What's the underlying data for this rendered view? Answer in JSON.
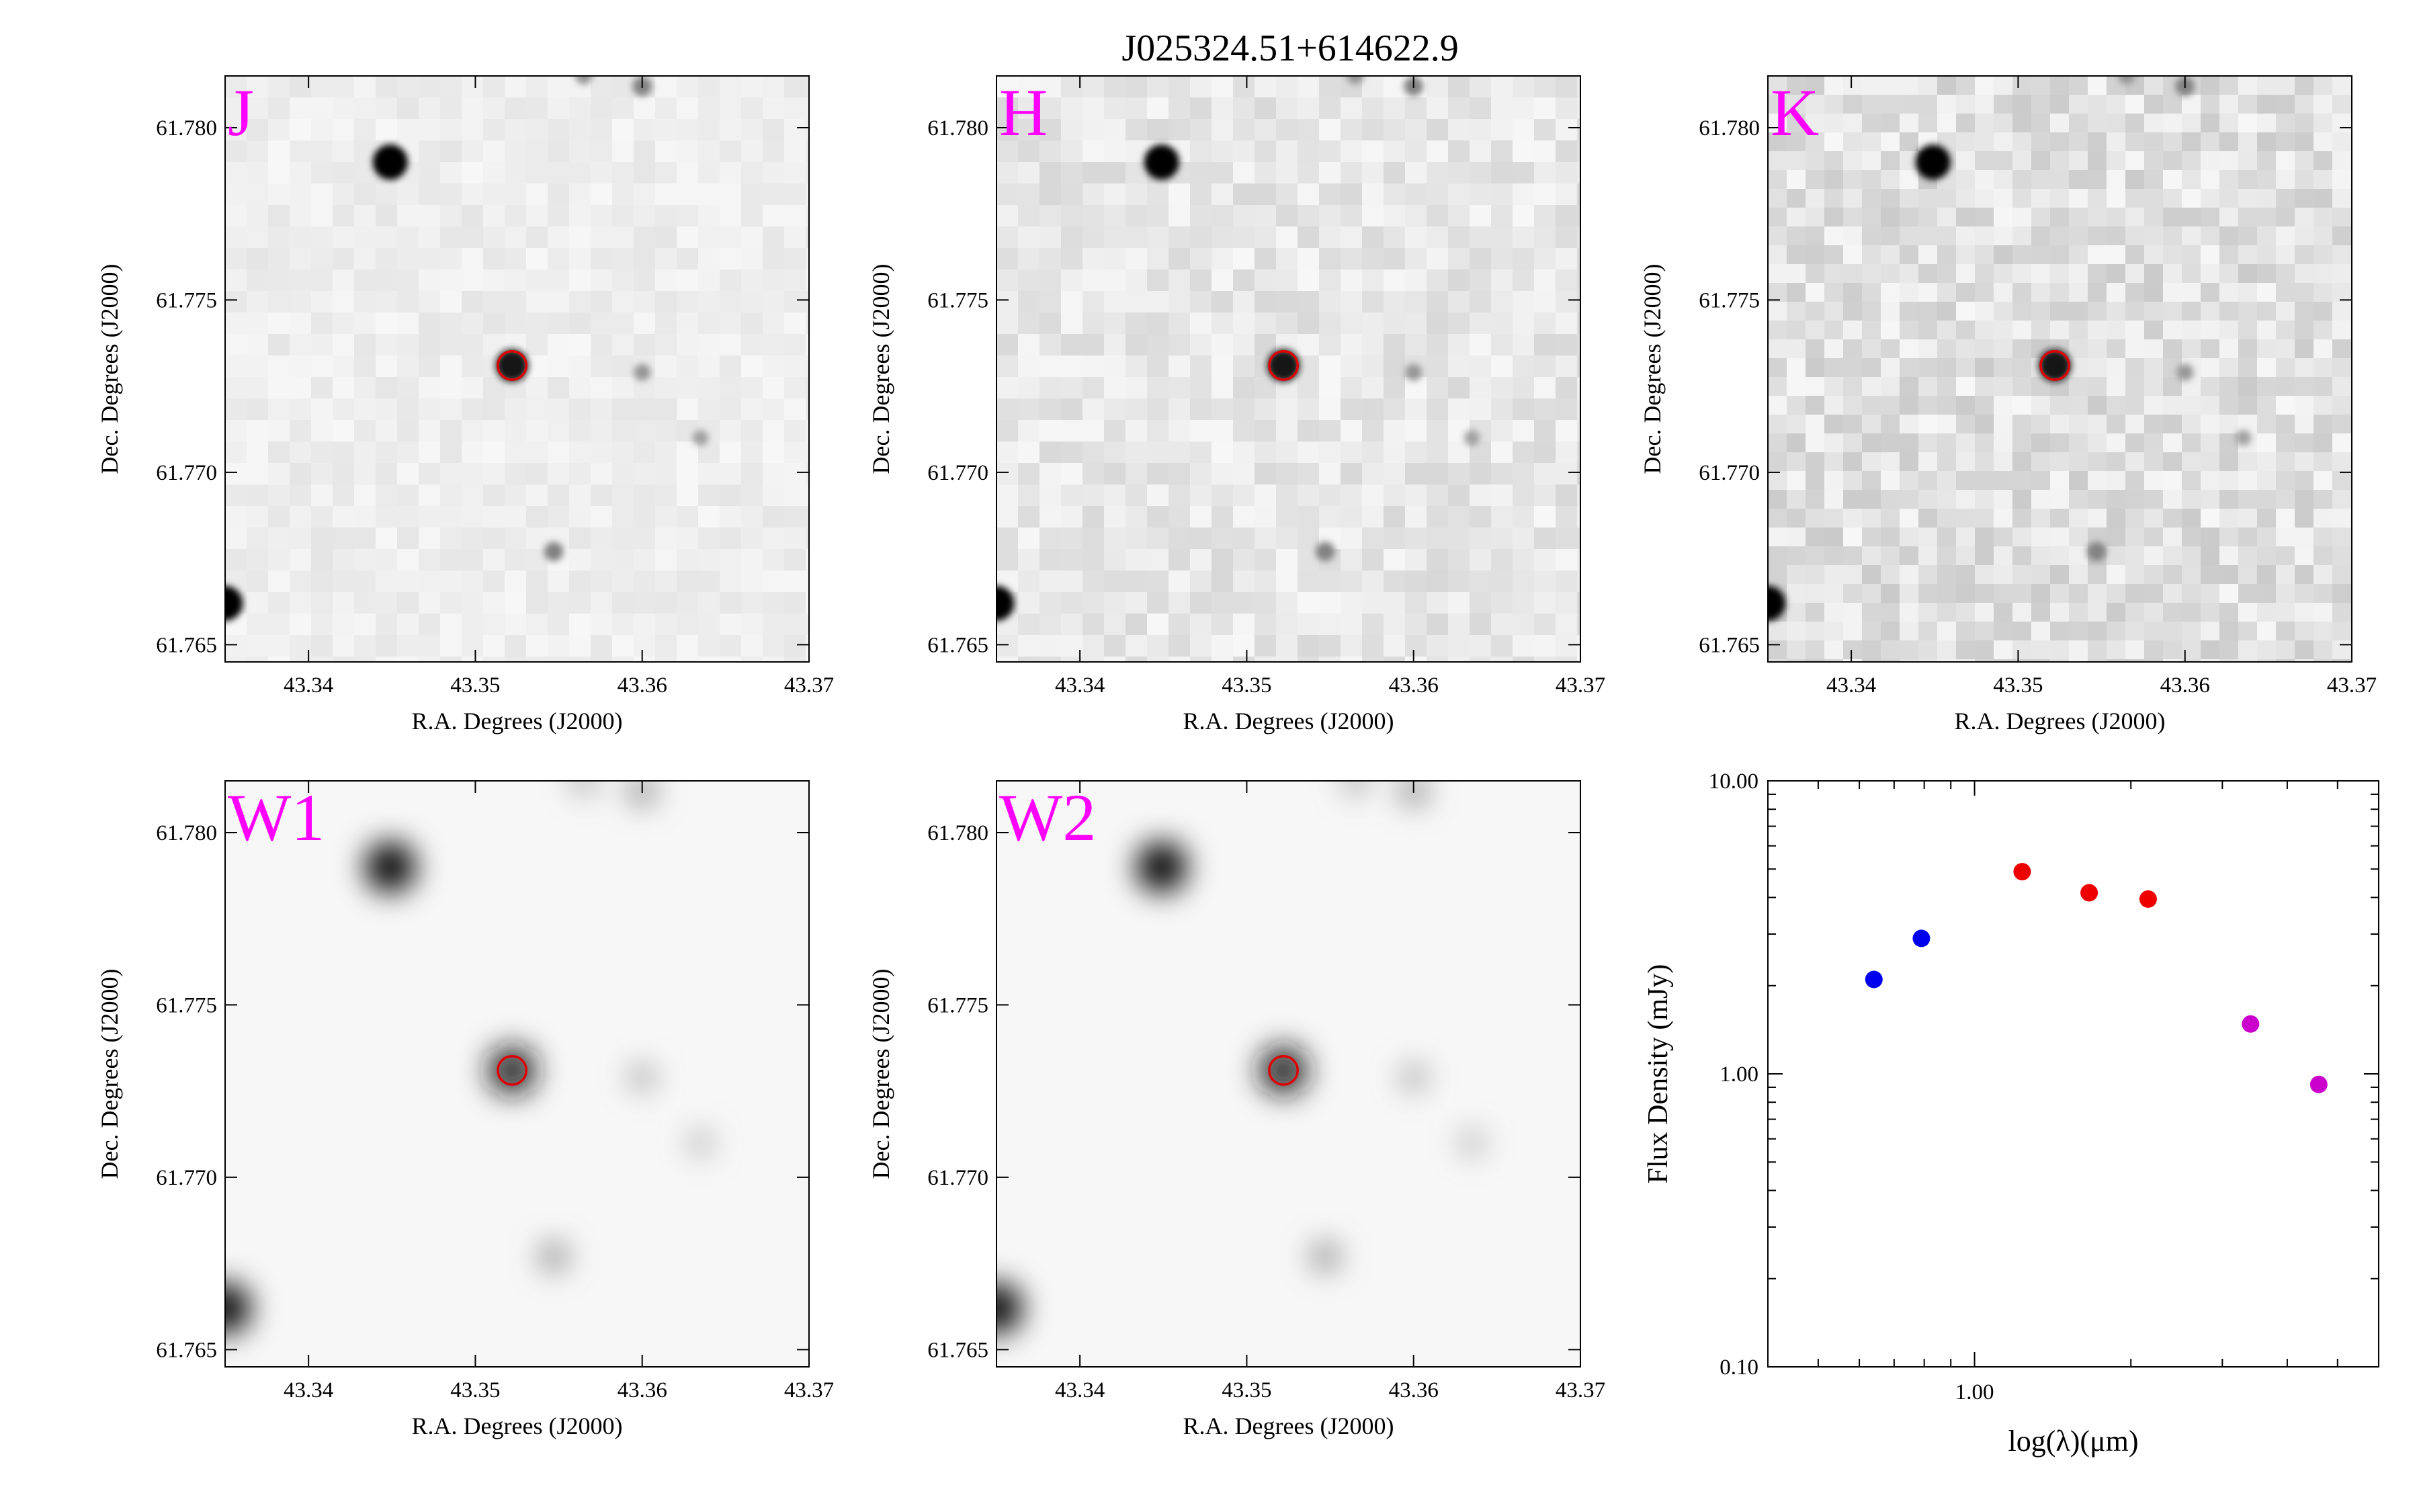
{
  "title": "J025324.51+614622.9",
  "colors": {
    "band_label": "#ff00ff",
    "source_circle": "#dd0000",
    "sed_optical": "#0000ee",
    "sed_2mass": "#ee0000",
    "sed_wise": "#cc00cc"
  },
  "image_panels": [
    {
      "band": "J",
      "psf": "sharp",
      "noise": "low",
      "xlabel": "R.A. Degrees (J2000)",
      "ylabel": "Dec. Degrees (J2000)"
    },
    {
      "band": "H",
      "psf": "sharp",
      "noise": "medium",
      "xlabel": "R.A. Degrees (J2000)",
      "ylabel": "Dec. Degrees (J2000)"
    },
    {
      "band": "K",
      "psf": "sharp",
      "noise": "high",
      "xlabel": "R.A. Degrees (J2000)",
      "ylabel": "Dec. Degrees (J2000)"
    },
    {
      "band": "W1",
      "psf": "broad",
      "noise": "none",
      "xlabel": "R.A. Degrees (J2000)",
      "ylabel": "Dec. Degrees (J2000)"
    },
    {
      "band": "W2",
      "psf": "broad",
      "noise": "none",
      "xlabel": "R.A. Degrees (J2000)",
      "ylabel": "Dec. Degrees (J2000)"
    }
  ],
  "image_axes": {
    "ra_range": [
      43.335,
      43.37
    ],
    "dec_range": [
      61.7645,
      61.7815
    ],
    "ra_ticks": [
      "43.34",
      "43.35",
      "43.36",
      "43.37"
    ],
    "dec_ticks": [
      "61.765",
      "61.770",
      "61.775",
      "61.780"
    ]
  },
  "target": {
    "ra": 43.3522,
    "dec": 61.7731,
    "circle_radius_deg": 0.00085
  },
  "field_stars": [
    {
      "ra": 43.3449,
      "dec": 61.779,
      "brightness": 1.0
    },
    {
      "ra": 43.3522,
      "dec": 61.7731,
      "brightness": 0.9
    },
    {
      "ra": 43.335,
      "dec": 61.7662,
      "brightness": 1.0
    },
    {
      "ra": 43.3547,
      "dec": 61.7677,
      "brightness": 0.35
    },
    {
      "ra": 43.36,
      "dec": 61.7729,
      "brightness": 0.25
    },
    {
      "ra": 43.3635,
      "dec": 61.771,
      "brightness": 0.2
    },
    {
      "ra": 43.36,
      "dec": 61.7812,
      "brightness": 0.35
    },
    {
      "ra": 43.3565,
      "dec": 61.7815,
      "brightness": 0.25
    }
  ],
  "chart_data": {
    "type": "scatter",
    "xlabel": "log(λ)(μm)",
    "ylabel": "Flux Density (mJy)",
    "xscale": "log",
    "yscale": "log",
    "xlim": [
      0.4,
      6.0
    ],
    "ylim": [
      0.1,
      10.0
    ],
    "x_tick_labels": [
      "1.00"
    ],
    "y_tick_labels": [
      "0.10",
      "1.00",
      "10.00"
    ],
    "grid": false,
    "series": [
      {
        "color": "#0000ee",
        "x": [
          0.64,
          0.79
        ],
        "y": [
          2.1,
          2.9
        ]
      },
      {
        "color": "#ee0000",
        "x": [
          1.235,
          1.662,
          2.159
        ],
        "y": [
          4.9,
          4.15,
          3.95
        ]
      },
      {
        "color": "#cc00cc",
        "x": [
          3.4,
          4.6
        ],
        "y": [
          1.48,
          0.92
        ]
      }
    ]
  }
}
